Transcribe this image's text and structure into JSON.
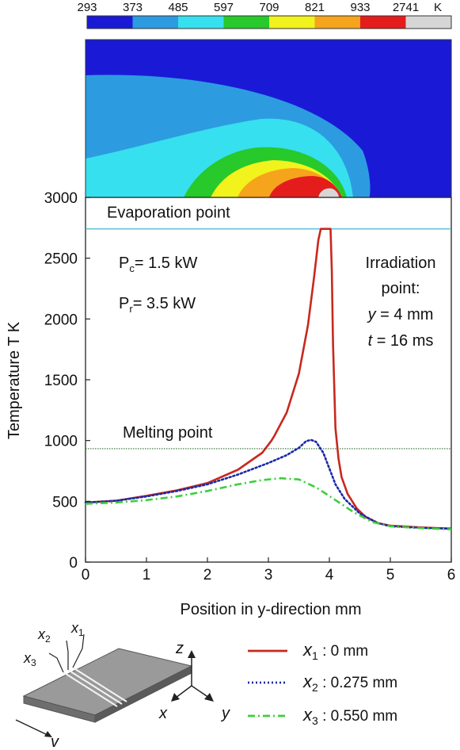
{
  "colorbar": {
    "labels": [
      "293",
      "373",
      "485",
      "597",
      "709",
      "821",
      "933",
      "2741"
    ],
    "unit": "K",
    "colors": [
      "#1a1ad6",
      "#2d9be0",
      "#36e0ee",
      "#27c92b",
      "#f2f21c",
      "#f5a41c",
      "#e51c1c",
      "#d6d6d6"
    ]
  },
  "chart_data": {
    "type": "line",
    "xlabel": "Position in y-direction  mm",
    "ylabel": "Temperature  T  K",
    "xlim": [
      0,
      6
    ],
    "ylim": [
      0,
      3000
    ],
    "x_ticks": [
      "0",
      "1",
      "2",
      "3",
      "4",
      "5",
      "6"
    ],
    "y_ticks": [
      "0",
      "500",
      "1000",
      "1500",
      "2000",
      "2500",
      "3000"
    ],
    "grid": false,
    "reference_lines": [
      {
        "label": "Evaporation point",
        "y": 2741,
        "color": "#3fb6cf"
      },
      {
        "label": "Melting point",
        "y": 933,
        "color": "#2e6b2e"
      }
    ],
    "annotations": {
      "pc_sym": "P",
      "pc_sub": "c",
      "pc_val": "= 1.5 kW",
      "pr_sym": "P",
      "pr_sub": "r",
      "pr_val": "= 3.5 kW",
      "irr_line1": "Irradiation",
      "irr_line2": "point:",
      "irr_y_var": "y",
      "irr_y_val": " = 4 mm",
      "irr_t_var": "t",
      "irr_t_val": " = 16 ms"
    },
    "series": [
      {
        "symbol": "x",
        "sub": "1",
        "legend": ": 0 mm",
        "color": "#c8281e",
        "dash": "",
        "x": [
          0,
          0.5,
          1,
          1.5,
          2,
          2.5,
          2.9,
          3.05,
          3.1,
          3.3,
          3.5,
          3.65,
          3.75,
          3.82,
          3.86,
          3.88,
          4.02,
          4.04,
          4.06,
          4.1,
          4.15,
          4.2,
          4.3,
          4.45,
          4.6,
          4.8,
          5.0,
          5.5,
          6.0
        ],
        "y": [
          490,
          505,
          545,
          590,
          650,
          760,
          900,
          1000,
          1040,
          1230,
          1550,
          1950,
          2350,
          2650,
          2741,
          2741,
          2741,
          2400,
          1800,
          1100,
          850,
          700,
          560,
          440,
          370,
          320,
          300,
          285,
          275
        ]
      },
      {
        "symbol": "x",
        "sub": "2",
        "legend": ": 0.275 mm",
        "color": "#1a2aa8",
        "dash": "2,3",
        "x": [
          0,
          0.5,
          1,
          1.5,
          2,
          2.5,
          3.0,
          3.3,
          3.5,
          3.62,
          3.7,
          3.78,
          3.9,
          4.0,
          4.1,
          4.25,
          4.5,
          4.8,
          5.0,
          5.5,
          6.0
        ],
        "y": [
          490,
          505,
          540,
          585,
          640,
          720,
          815,
          880,
          940,
          995,
          1005,
          990,
          900,
          770,
          640,
          520,
          400,
          320,
          295,
          282,
          275
        ]
      },
      {
        "symbol": "x",
        "sub": "3",
        "legend": ": 0.550 mm",
        "color": "#3ccf3c",
        "dash": "9,4,2,4",
        "x": [
          0,
          0.5,
          1,
          1.5,
          2,
          2.5,
          2.9,
          3.2,
          3.5,
          3.8,
          4.1,
          4.4,
          4.7,
          5.0,
          5.5,
          6.0
        ],
        "y": [
          480,
          490,
          510,
          540,
          585,
          640,
          675,
          690,
          680,
          610,
          510,
          410,
          330,
          295,
          280,
          270
        ]
      }
    ]
  },
  "inset": {
    "v_label": "v"
  },
  "axes3d": {
    "x": "x",
    "y": "y",
    "z": "z"
  }
}
